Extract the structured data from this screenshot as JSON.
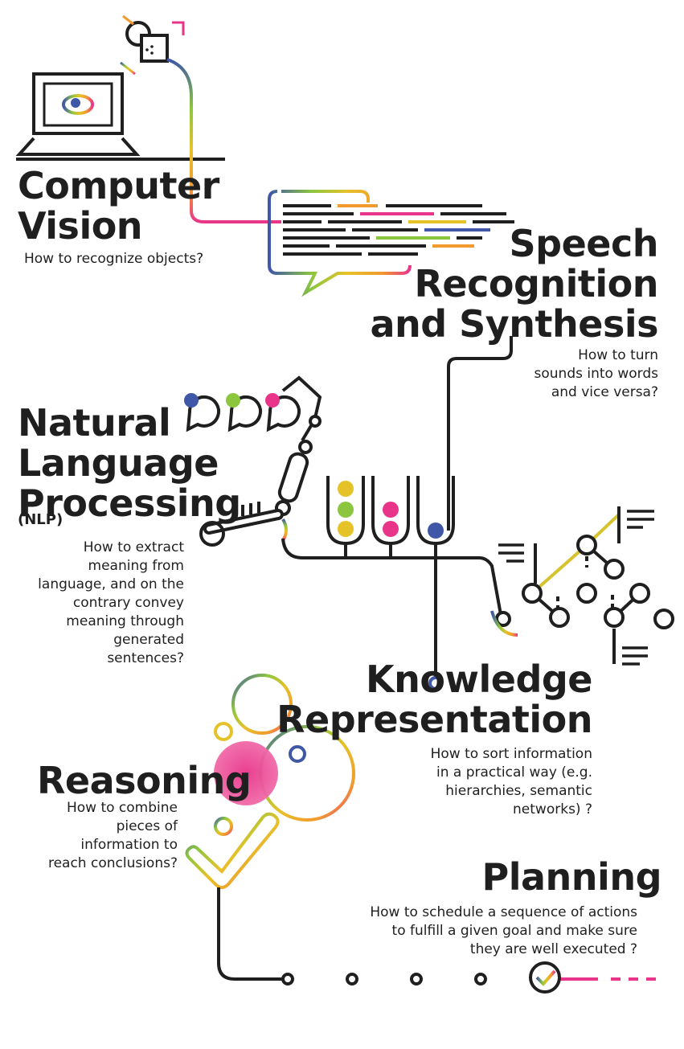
{
  "palette": {
    "ink": "#1f1f1f",
    "blue": "#3f57a6",
    "green": "#8cc63f",
    "yellow": "#e6c229",
    "orange": "#f29a2e",
    "pink": "#e8358a"
  },
  "computer_vision": {
    "title_lines": [
      "Computer",
      "Vision"
    ],
    "subtitle": "How to recognize objects?"
  },
  "speech": {
    "title_lines": [
      "Speech",
      "Recognition",
      "and Synthesis"
    ],
    "subtitle_lines": [
      "How to turn",
      "sounds into words",
      "and vice versa?"
    ]
  },
  "nlp": {
    "title_lines": [
      "Natural",
      "Language",
      "Processing"
    ],
    "abbr": "(NLP)",
    "subtitle_lines": [
      "How to extract",
      "meaning from",
      "language, and on the",
      "contrary convey",
      "meaning through",
      "generated",
      "sentences?"
    ]
  },
  "knowledge": {
    "title_lines": [
      "Knowledge",
      "Representation"
    ],
    "subtitle_lines": [
      "How to sort information",
      "in a practical way (e.g.",
      "hierarchies, semantic",
      "networks) ?"
    ]
  },
  "reasoning": {
    "title": "Reasoning",
    "subtitle_lines": [
      "How to combine",
      "pieces of",
      "information to",
      "reach conclusions?"
    ]
  },
  "planning": {
    "title": "Planning",
    "subtitle_lines": [
      "How to schedule a sequence of actions",
      "to fulfill a given goal and make sure",
      "they are well executed ?"
    ]
  }
}
